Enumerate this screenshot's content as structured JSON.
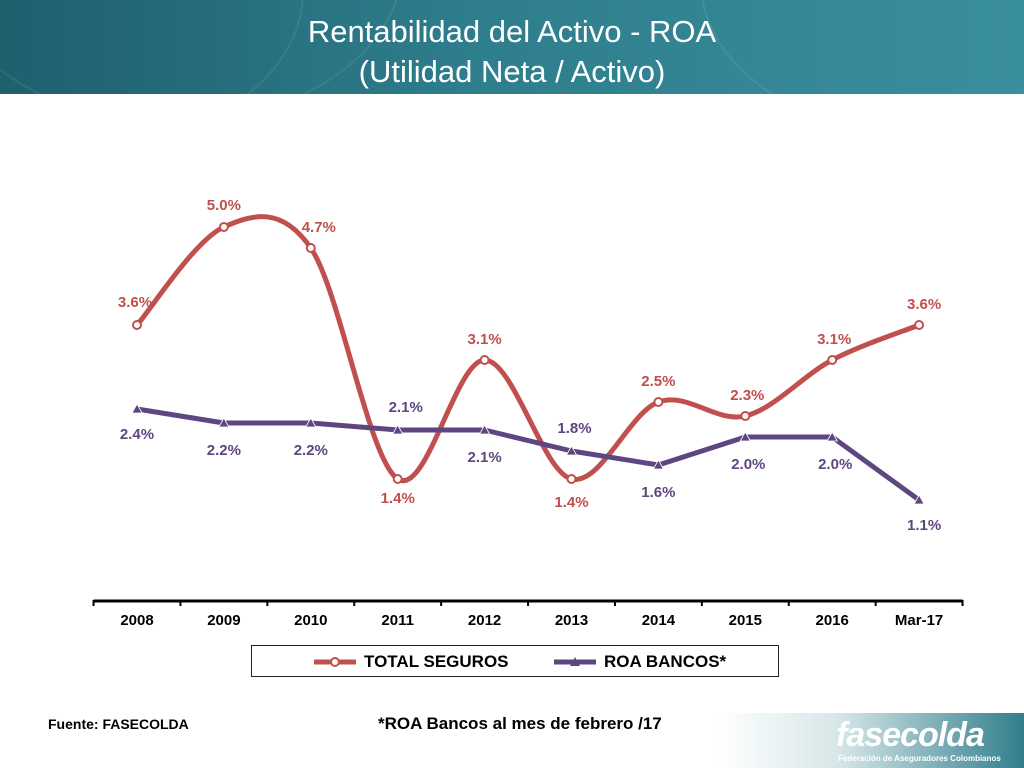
{
  "header": {
    "title_line1": "Rentabilidad del Activo - ROA",
    "title_line2": "(Utilidad Neta / Activo)",
    "color_start": "#1f5f6e",
    "color_end": "#3a8f9c"
  },
  "chart_data": {
    "type": "line",
    "title": "Rentabilidad del Activo - ROA (Utilidad Neta / Activo)",
    "categories": [
      "2008",
      "2009",
      "2010",
      "2011",
      "2012",
      "2013",
      "2014",
      "2015",
      "2016",
      "Mar-17"
    ],
    "ylim": [
      0,
      6
    ],
    "grid": false,
    "legend_position": "bottom",
    "series": [
      {
        "name": "TOTAL SEGUROS",
        "values": [
          3.6,
          5.0,
          4.7,
          1.4,
          3.1,
          1.4,
          2.5,
          2.3,
          3.1,
          3.6
        ],
        "labels": [
          "3.6%",
          "5.0%",
          "4.7%",
          "1.4%",
          "3.1%",
          "1.4%",
          "2.5%",
          "2.3%",
          "3.1%",
          "3.6%"
        ],
        "color": "#c0504d",
        "marker": "circle",
        "smooth": true
      },
      {
        "name": "ROA BANCOS*",
        "values": [
          2.4,
          2.2,
          2.2,
          2.1,
          2.1,
          1.8,
          1.6,
          2.0,
          2.0,
          1.1
        ],
        "labels": [
          "2.4%",
          "2.2%",
          "2.2%",
          "2.1%",
          "2.1%",
          "1.8%",
          "1.6%",
          "2.0%",
          "2.0%",
          "1.1%"
        ],
        "color": "#5e4680",
        "marker": "triangle",
        "smooth": false
      }
    ]
  },
  "legend": {
    "item1_label": "TOTAL SEGUROS",
    "item2_label": "ROA BANCOS*"
  },
  "footer": {
    "source": "Fuente: FASECOLDA",
    "footnote": "*ROA  Bancos al mes de febrero /17",
    "logo_name": "fasecolda",
    "logo_sub": "Federación de Aseguradores Colombianos"
  }
}
